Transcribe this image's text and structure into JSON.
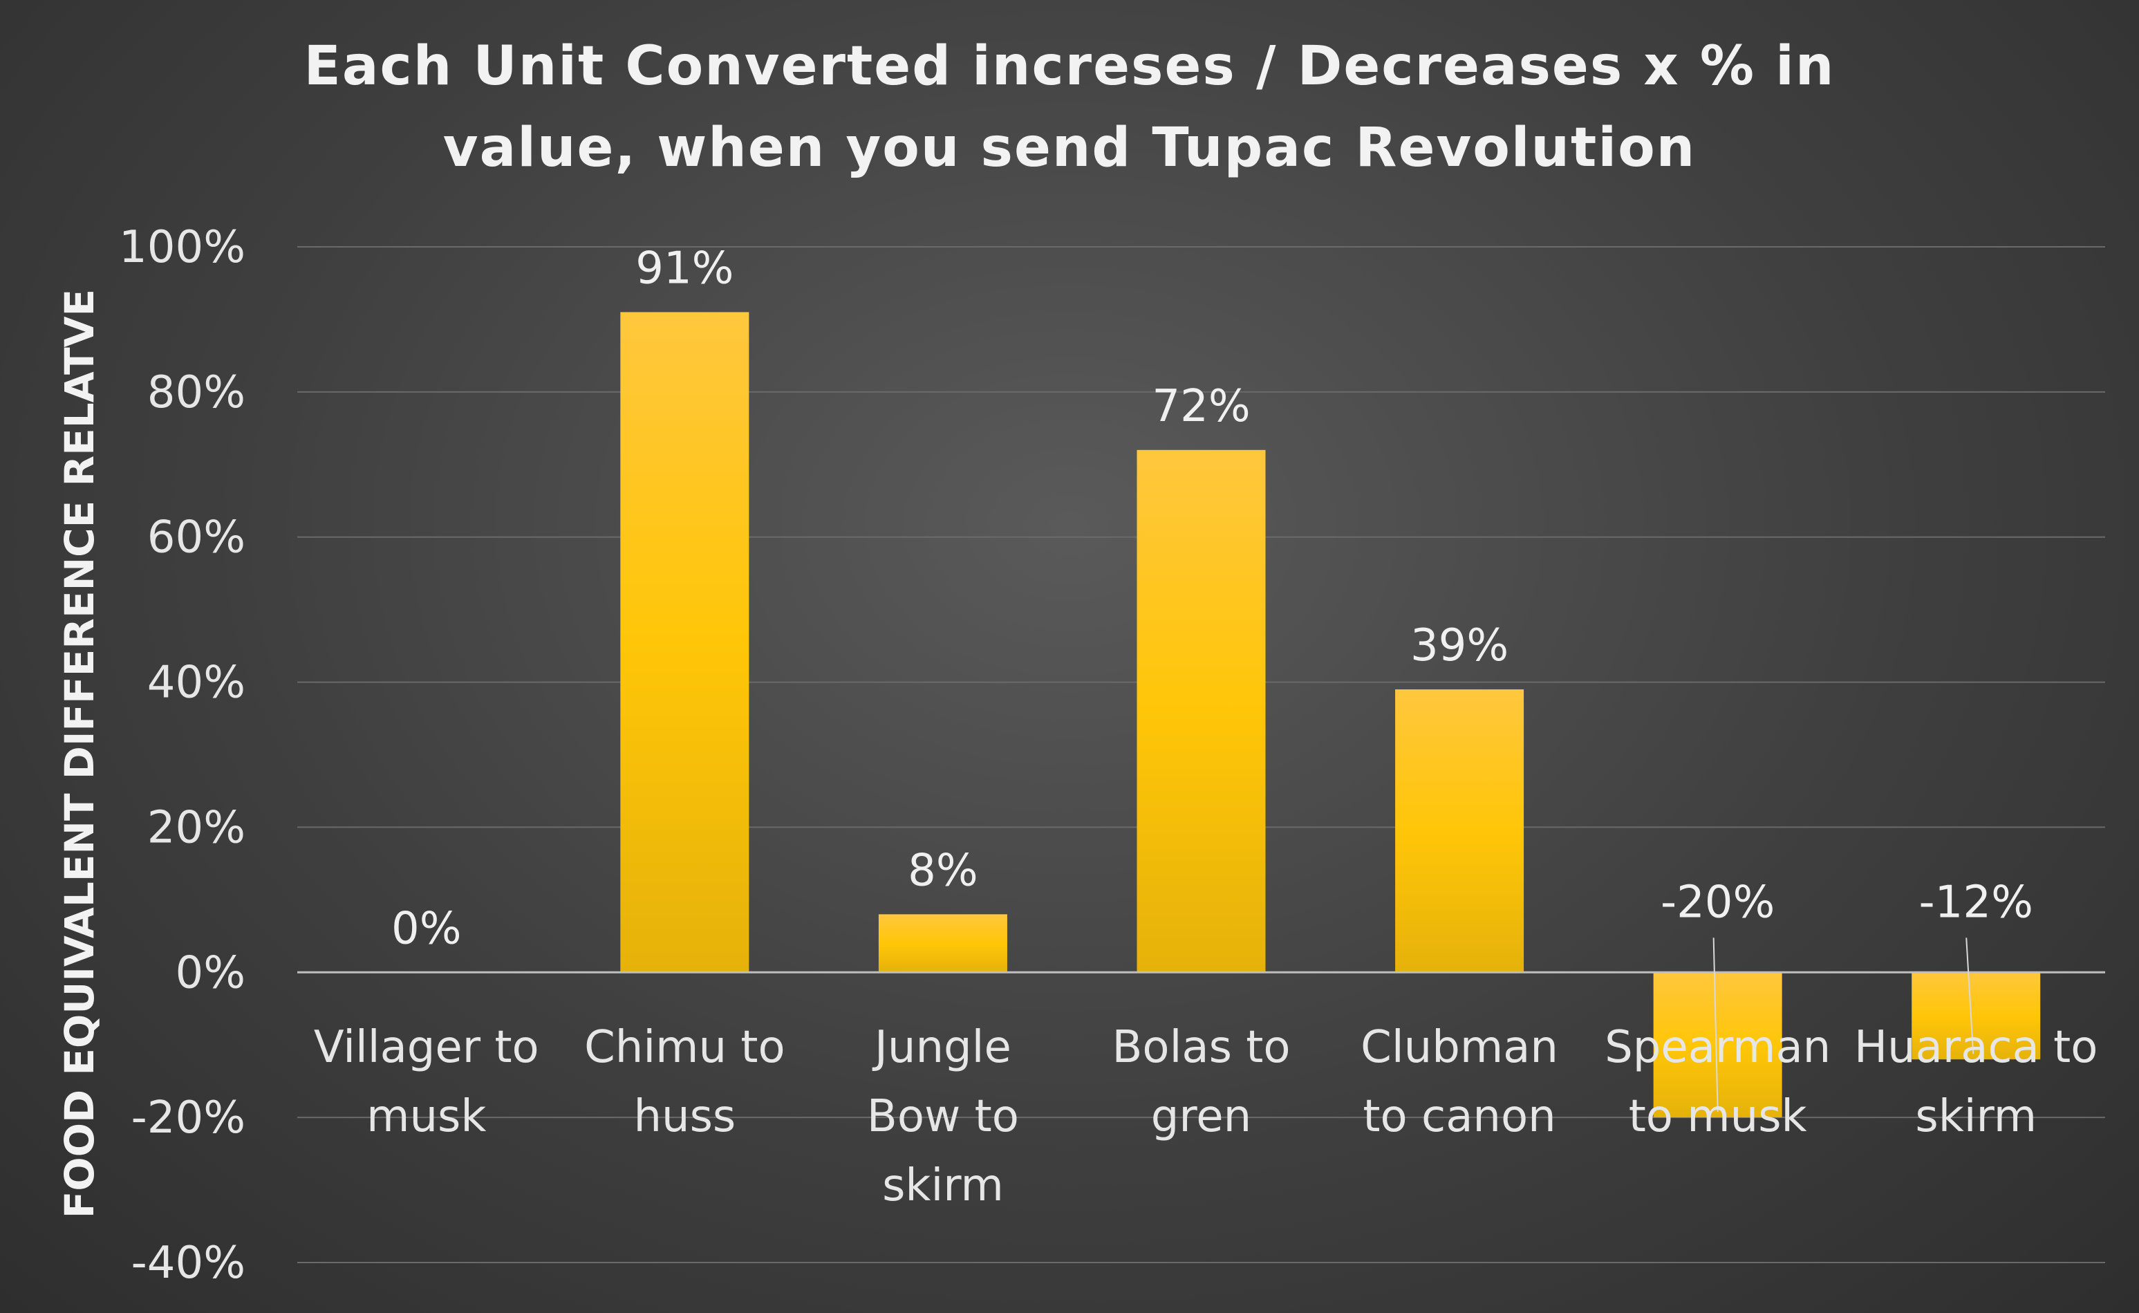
{
  "chart_data": {
    "type": "bar",
    "title_lines": [
      "Each Unit Converted increses / Decreases x % in",
      "value, when you send Tupac Revolution"
    ],
    "ylabel": "FOOD EQUIVALENT DIFFERENCE RELATVE",
    "xlabel": "",
    "ylim": [
      -40,
      100
    ],
    "yticks": [
      100,
      80,
      60,
      40,
      20,
      0,
      -20,
      -40
    ],
    "ytick_labels": [
      "100%",
      "80%",
      "60%",
      "40%",
      "20%",
      "0%",
      "-20%",
      "-40%"
    ],
    "grid": true,
    "categories": [
      [
        "Villager to",
        "musk"
      ],
      [
        "Chimu to",
        "huss"
      ],
      [
        "Jungle",
        "Bow to",
        "skirm"
      ],
      [
        "Bolas to",
        "gren"
      ],
      [
        "Clubman",
        "to canon"
      ],
      [
        "Spearman",
        "to musk"
      ],
      [
        "Huaraca to",
        "skirm"
      ]
    ],
    "values": [
      0,
      91,
      8,
      72,
      39,
      -20,
      -12
    ],
    "data_labels": [
      "0%",
      "91%",
      "8%",
      "72%",
      "39%",
      "-20%",
      "-12%"
    ],
    "colors": {
      "bar_top": "#ffc73d",
      "bar_mid": "#ffc608",
      "bar_bottom": "#e6b20a",
      "background": "#404040"
    }
  }
}
